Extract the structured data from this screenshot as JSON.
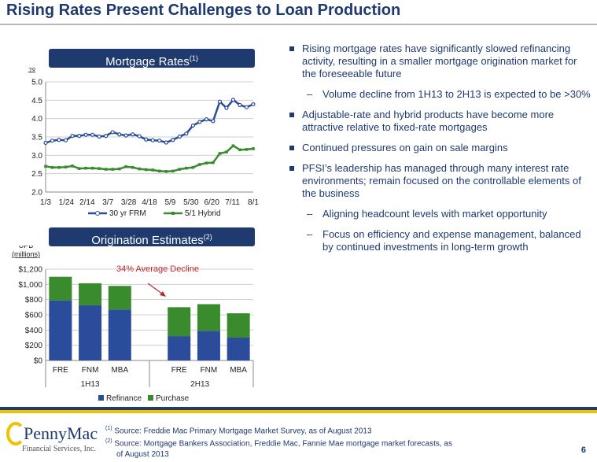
{
  "title": "Rising Rates Present Challenges to Loan Production",
  "panels": {
    "mortgage_rates_title": "Mortgage Rates",
    "mortgage_rates_sup": "(1)",
    "origination_title": "Origination Estimates",
    "origination_sup": "(2)"
  },
  "bullets": [
    "Rising mortgage rates have significantly slowed refinancing activity, resulting in a smaller mortgage origination market for the foreseeable future",
    "Volume decline from 1H13 to 2H13 is expected to be >30%",
    "Adjustable-rate and hybrid products have become more attractive relative to fixed-rate mortgages",
    "Continued pressures on gain on sale margins",
    "PFSI’s leadership has managed through many interest rate environments; remain focused on the controllable elements of the business",
    "Aligning headcount levels with market opportunity",
    "Focus on efficiency and expense management, balanced by continued investments in long-term growth"
  ],
  "footnotes": {
    "n1_sup": "(1)",
    "n1": " Source: Freddie Mac Primary Mortgage Market Survey, as of August 2013",
    "n2_sup": "(2)",
    "n2": " Source: Mortgage Bankers Association, Freddie Mac, Fannie Mae mortgage market forecasts, as",
    "n2_cont": "of August 2013"
  },
  "page_number": "6",
  "logo": {
    "word": "PennyMac",
    "sub": "Financial Services, Inc."
  },
  "colors": {
    "navy": "#1f3a6e",
    "blue_series": "#2b4c9b",
    "green_series": "#3a8a2e",
    "gold": "#f2c200",
    "red_annotation": "#c0272d"
  },
  "chart_data": [
    {
      "type": "line",
      "ylabel": "%",
      "ylim": [
        2.0,
        5.0
      ],
      "yticks": [
        "2.0",
        "2.5",
        "3.0",
        "3.5",
        "4.0",
        "4.5",
        "5.0"
      ],
      "xtick_labels": [
        "1/3",
        "1/24",
        "2/14",
        "3/7",
        "3/28",
        "4/18",
        "5/9",
        "5/30",
        "6/20",
        "7/11",
        "8/1"
      ],
      "grid": true,
      "legend": "bottom",
      "series": [
        {
          "name": "30 yr FRM",
          "color": "#2b4c9b",
          "values": [
            3.34,
            3.4,
            3.42,
            3.41,
            3.53,
            3.53,
            3.56,
            3.56,
            3.51,
            3.53,
            3.63,
            3.57,
            3.54,
            3.57,
            3.52,
            3.43,
            3.41,
            3.4,
            3.35,
            3.42,
            3.51,
            3.59,
            3.81,
            3.91,
            3.98,
            3.93,
            4.46,
            4.29,
            4.51,
            4.37,
            4.31,
            4.39
          ]
        },
        {
          "name": "5/1 Hybrid",
          "color": "#3a8a2e",
          "values": [
            2.7,
            2.67,
            2.67,
            2.68,
            2.71,
            2.64,
            2.65,
            2.65,
            2.64,
            2.62,
            2.62,
            2.63,
            2.69,
            2.67,
            2.63,
            2.61,
            2.6,
            2.57,
            2.56,
            2.57,
            2.62,
            2.65,
            2.67,
            2.75,
            2.79,
            2.8,
            3.05,
            3.09,
            3.26,
            3.15,
            3.16,
            3.18
          ]
        }
      ]
    },
    {
      "type": "bar",
      "stacked": true,
      "ylabel": "UPB (millions)",
      "ylim": [
        0,
        1200
      ],
      "yticks": [
        "$0",
        "$200",
        "$400",
        "$600",
        "$800",
        "$1,000",
        "$1,200"
      ],
      "categories": [
        "FRE",
        "FNM",
        "MBA",
        "FRE",
        "FNM",
        "MBA"
      ],
      "groups": [
        "1H13",
        "2H13"
      ],
      "legend": "bottom",
      "annotation": "34% Average Decline",
      "series": [
        {
          "name": "Refinance",
          "color": "#2b4c9b",
          "values": [
            790,
            725,
            670,
            320,
            390,
            300
          ]
        },
        {
          "name": "Purchase",
          "color": "#3a8a2e",
          "values": [
            310,
            290,
            310,
            380,
            350,
            320
          ]
        }
      ]
    }
  ]
}
